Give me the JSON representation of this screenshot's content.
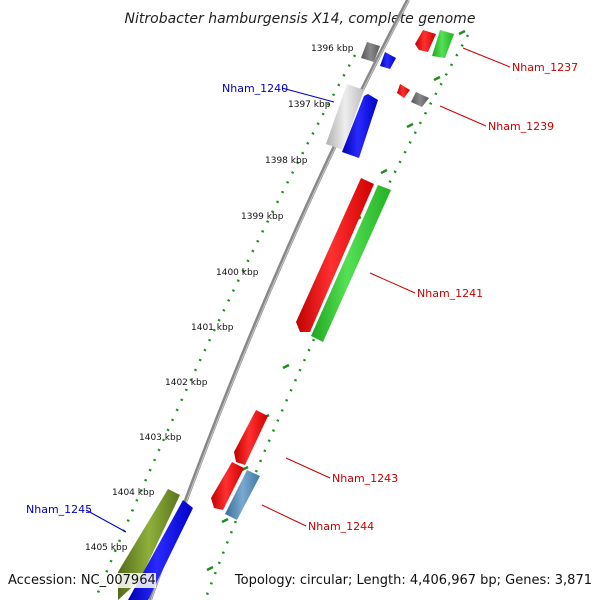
{
  "title": "Nitrobacter hamburgensis X14, complete genome",
  "footer": {
    "accession": "Accession: NC_007964",
    "topology": "Topology: circular; Length: 4,406,967 bp; Genes: 3,871"
  },
  "ticks": [
    "1396 kbp",
    "1397 kbp",
    "1398 kbp",
    "1399 kbp",
    "1400 kbp",
    "1401 kbp",
    "1402 kbp",
    "1403 kbp",
    "1404 kbp",
    "1405 kbp"
  ],
  "genes": [
    {
      "name": "Nham_1237",
      "strand": "forward",
      "color": "#ff0000"
    },
    {
      "name": "Nham_1239",
      "strand": "forward",
      "color": "#ff0000"
    },
    {
      "name": "Nham_1240",
      "strand": "reverse",
      "color": "#0000ff"
    },
    {
      "name": "Nham_1241",
      "strand": "forward",
      "color": "#ff0000"
    },
    {
      "name": "Nham_1243",
      "strand": "forward",
      "color": "#ff0000"
    },
    {
      "name": "Nham_1244",
      "strand": "forward",
      "color": "#ff0000"
    },
    {
      "name": "Nham_1245",
      "strand": "reverse",
      "color": "#0000ff"
    }
  ],
  "colors": {
    "forward_label": "#cc0000",
    "reverse_label": "#0000cc",
    "backbone": "#888888",
    "cds_red": "#ff0000",
    "cds_blue": "#0000ff",
    "cds_green": "#33cc33",
    "cds_gray": "#777777",
    "cds_light": "#cccccc",
    "cds_steel": "#4682b4",
    "cds_olive": "#6b8e23",
    "ruler": "#228b22"
  }
}
